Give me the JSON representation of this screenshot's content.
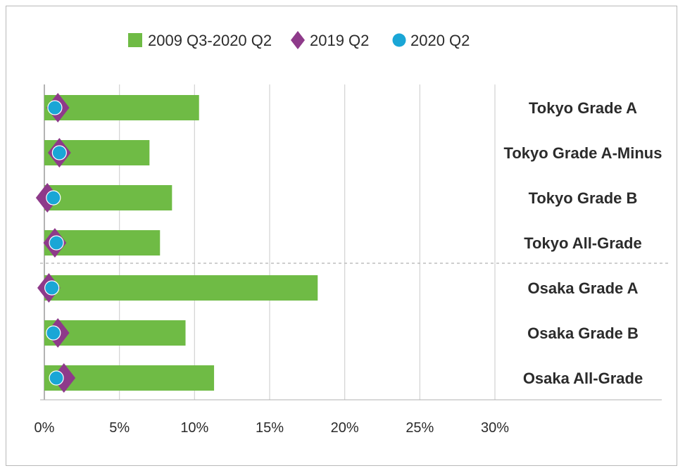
{
  "chart_data": {
    "type": "bar",
    "orientation": "horizontal",
    "categories": [
      "Tokyo Grade A",
      "Tokyo Grade A-Minus",
      "Tokyo Grade B",
      "Tokyo All-Grade",
      "Osaka Grade A",
      "Osaka Grade B",
      "Osaka All-Grade"
    ],
    "series": [
      {
        "name": "2009 Q3-2020 Q2",
        "kind": "bar",
        "marker": "rect",
        "color": "#6fbb45",
        "values": [
          10.3,
          7.0,
          8.5,
          7.7,
          18.2,
          9.4,
          11.3
        ]
      },
      {
        "name": "2019 Q2",
        "kind": "marker",
        "marker": "diamond",
        "color": "#8e3a8a",
        "values": [
          0.9,
          1.0,
          0.2,
          0.7,
          0.3,
          0.9,
          1.3
        ]
      },
      {
        "name": "2020 Q2",
        "kind": "marker",
        "marker": "circle",
        "color": "#1aa6d6",
        "values": [
          0.7,
          1.0,
          0.6,
          0.8,
          0.5,
          0.6,
          0.8
        ]
      }
    ],
    "x_ticks": [
      "0%",
      "5%",
      "10%",
      "15%",
      "20%",
      "25%",
      "30%"
    ],
    "xlim": [
      0,
      30
    ],
    "grid": true,
    "legend_position": "top",
    "group_separator_after": 3
  }
}
